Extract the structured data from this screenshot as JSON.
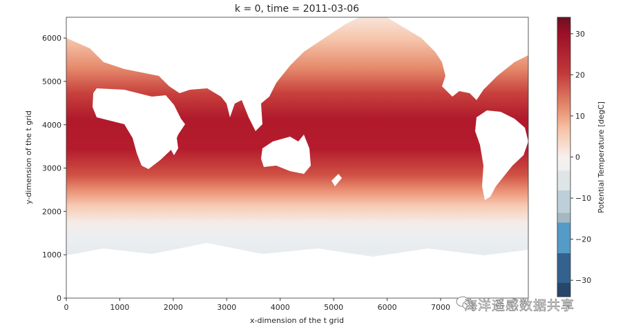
{
  "chart_data": {
    "type": "heatmap",
    "title": "k = 0, time = 2011-03-06",
    "xlabel": "x-dimension of the t grid",
    "ylabel": "y-dimension of the t grid",
    "xlim": [
      0,
      8640
    ],
    "ylim": [
      0,
      6480
    ],
    "xticks": [
      "0",
      "1000",
      "2000",
      "3000",
      "4000",
      "5000",
      "6000",
      "7000"
    ],
    "yticks": [
      "0",
      "1000",
      "2000",
      "3000",
      "4000",
      "5000",
      "6000"
    ],
    "grid": false,
    "colorbar": {
      "label": "Potential Temperature [degC]",
      "colormap": "RdBu_r",
      "range": [
        -34,
        34
      ],
      "ticks": [
        "30",
        "20",
        "10",
        "0",
        "−10",
        "−20",
        "−30"
      ],
      "position": "right"
    },
    "description_values": {
      "field": "sea surface potential temperature, warmest (~30) near y≈3700, decreasing toward poles",
      "land": "masked (white)"
    }
  },
  "watermark": {
    "text": "海洋遥感数据共享",
    "icon": "wechat-icon"
  }
}
